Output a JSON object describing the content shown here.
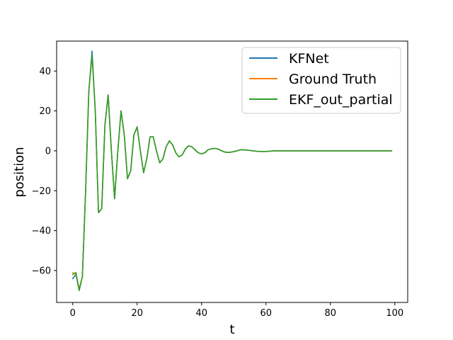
{
  "chart_data": {
    "type": "line",
    "title": "",
    "xlabel": "t",
    "ylabel": "position",
    "xlim": [
      -5,
      104
    ],
    "ylim": [
      -76,
      55
    ],
    "xticks": [
      0,
      20,
      40,
      60,
      80,
      100
    ],
    "yticks": [
      -60,
      -40,
      -20,
      0,
      20,
      40
    ],
    "grid": false,
    "legend_position": "top-right",
    "x": [
      0,
      1,
      2,
      3,
      4,
      5,
      6,
      7,
      8,
      9,
      10,
      11,
      12,
      13,
      14,
      15,
      16,
      17,
      18,
      19,
      20,
      21,
      22,
      23,
      24,
      25,
      26,
      27,
      28,
      29,
      30,
      31,
      32,
      33,
      34,
      35,
      36,
      37,
      38,
      39,
      40,
      41,
      42,
      43,
      44,
      45,
      46,
      47,
      48,
      49,
      50,
      51,
      52,
      53,
      54,
      55,
      56,
      57,
      58,
      59,
      60,
      61,
      62,
      63,
      64,
      65,
      66,
      67,
      68,
      69,
      70,
      71,
      72,
      73,
      74,
      75,
      76,
      77,
      78,
      79,
      80,
      81,
      82,
      83,
      84,
      85,
      86,
      87,
      88,
      89,
      90,
      91,
      92,
      93,
      94,
      95,
      96,
      97,
      98,
      99
    ],
    "series": [
      {
        "name": "KFNet",
        "color": "#1f77b4",
        "values": [
          -64,
          -62,
          -70,
          -63,
          -20,
          30,
          50,
          20,
          -31,
          -29,
          13,
          28,
          0,
          -24,
          0,
          20,
          8,
          -14,
          -10,
          8,
          12,
          0,
          -11,
          -4,
          7,
          7,
          0,
          -6,
          -4,
          2,
          5,
          3,
          -1,
          -3,
          -2,
          1,
          2.5,
          2,
          0.5,
          -1,
          -1.5,
          -1,
          0.5,
          1,
          1.2,
          1,
          0.2,
          -0.5,
          -0.8,
          -0.7,
          -0.4,
          0,
          0.5,
          0.5,
          0.4,
          0.2,
          0,
          -0.2,
          -0.3,
          -0.3,
          -0.3,
          -0.2,
          -0.1,
          0,
          0,
          0,
          0,
          0,
          0,
          0,
          0,
          0,
          0,
          0,
          0,
          0,
          0,
          0,
          0,
          0,
          0,
          0,
          0,
          0,
          0,
          0,
          0,
          0,
          0,
          0,
          0,
          0,
          0,
          0,
          0,
          0,
          0,
          0,
          0,
          0
        ]
      },
      {
        "name": "Ground Truth",
        "color": "#ff7f0e",
        "values": [
          -61,
          -62,
          -69,
          -63,
          -20,
          30,
          48,
          20,
          -31,
          -29,
          13,
          28,
          0,
          -24,
          0,
          20,
          8,
          -14,
          -10,
          8,
          12,
          0,
          -11,
          -4,
          7,
          7,
          0,
          -6,
          -4,
          2,
          5,
          3,
          -1,
          -3,
          -2,
          1,
          2.5,
          2,
          0.5,
          -1,
          -1.5,
          -1,
          0.5,
          1,
          1.2,
          1,
          0.2,
          -0.5,
          -0.8,
          -0.7,
          -0.4,
          0,
          0.5,
          0.5,
          0.4,
          0.2,
          0,
          -0.2,
          -0.3,
          -0.3,
          -0.3,
          -0.2,
          -0.1,
          0,
          0,
          0,
          0,
          0,
          0,
          0,
          0,
          0,
          0,
          0,
          0,
          0,
          0,
          0,
          0,
          0,
          0,
          0,
          0,
          0,
          0,
          0,
          0,
          0,
          0,
          0,
          0,
          0,
          0,
          0,
          0,
          0,
          0,
          0,
          0,
          0
        ]
      },
      {
        "name": "EKF_out_partial",
        "color": "#2ca02c",
        "values": [
          -62,
          -61,
          -70,
          -63,
          -20,
          30,
          48,
          20,
          -31,
          -29,
          13,
          28,
          0,
          -24,
          0,
          20,
          8,
          -14,
          -10,
          8,
          12,
          0,
          -11,
          -4,
          7,
          7,
          0,
          -6,
          -4,
          2,
          5,
          3,
          -1,
          -3,
          -2,
          1,
          2.5,
          2,
          0.5,
          -1,
          -1.5,
          -1,
          0.5,
          1,
          1.2,
          1,
          0.2,
          -0.5,
          -0.8,
          -0.7,
          -0.4,
          0,
          0.5,
          0.5,
          0.4,
          0.2,
          0,
          -0.2,
          -0.3,
          -0.3,
          -0.3,
          -0.2,
          -0.1,
          0,
          0,
          0,
          0,
          0,
          0,
          0,
          0,
          0,
          0,
          0,
          0,
          0,
          0,
          0,
          0,
          0,
          0,
          0,
          0,
          0,
          0,
          0,
          0,
          0,
          0,
          0,
          0,
          0,
          0,
          0,
          0,
          0,
          0,
          0,
          0,
          0
        ]
      }
    ]
  }
}
